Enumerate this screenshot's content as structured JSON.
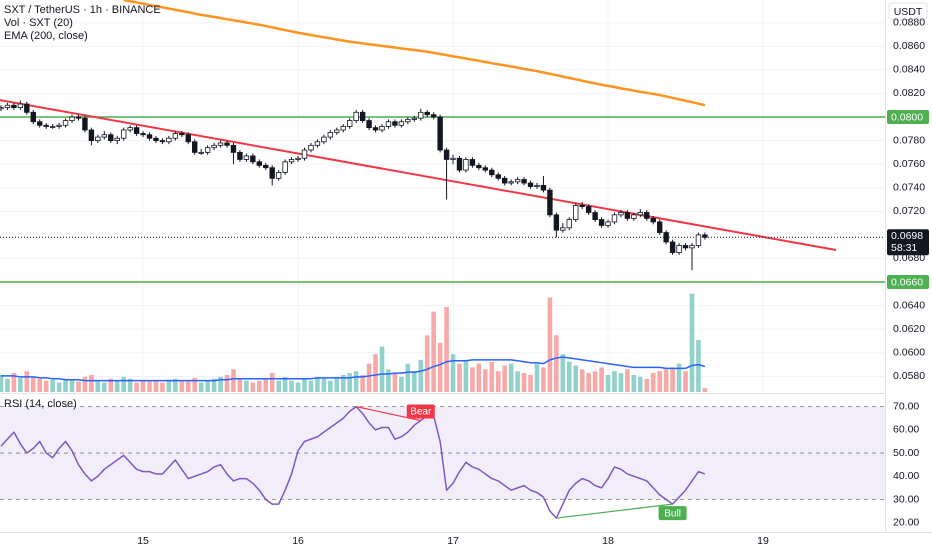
{
  "chart_data": {
    "type": "candlestick",
    "title": "SXT / TetherUS · 1h · BINANCE",
    "currency": "USDT",
    "x": [
      14.0833,
      14.125,
      14.1667,
      14.2083,
      14.25,
      14.2917,
      14.3333,
      14.375,
      14.4167,
      14.4583,
      14.5,
      14.5417,
      14.5833,
      14.625,
      14.6667,
      14.7083,
      14.75,
      14.7917,
      14.8333,
      14.875,
      14.9167,
      14.9583,
      15,
      15.0417,
      15.0833,
      15.125,
      15.1667,
      15.2083,
      15.25,
      15.2917,
      15.3333,
      15.375,
      15.4167,
      15.4583,
      15.5,
      15.5417,
      15.5833,
      15.625,
      15.6667,
      15.7083,
      15.75,
      15.7917,
      15.8333,
      15.875,
      15.9167,
      15.9583,
      16,
      16.0417,
      16.0833,
      16.125,
      16.1667,
      16.2083,
      16.25,
      16.2917,
      16.3333,
      16.375,
      16.4167,
      16.4583,
      16.5,
      16.5417,
      16.5833,
      16.625,
      16.6667,
      16.7083,
      16.75,
      16.7917,
      16.8333,
      16.875,
      16.9167,
      16.9583,
      17,
      17.0417,
      17.0833,
      17.125,
      17.1667,
      17.2083,
      17.25,
      17.2917,
      17.3333,
      17.375,
      17.4167,
      17.4583,
      17.5,
      17.5417,
      17.5833,
      17.625,
      17.6667,
      17.7083,
      17.75,
      17.7917,
      17.8333,
      17.875,
      17.9167,
      17.9583,
      18,
      18.0417,
      18.0833,
      18.125,
      18.1667,
      18.2083,
      18.25,
      18.2917,
      18.3333,
      18.375,
      18.4167,
      18.4583,
      18.5,
      18.5417,
      18.5833,
      18.625
    ],
    "open": [
      0.0807,
      0.0808,
      0.081,
      0.0808,
      0.0811,
      0.0804,
      0.0796,
      0.0793,
      0.0792,
      0.0792,
      0.0793,
      0.0797,
      0.08,
      0.0799,
      0.0789,
      0.078,
      0.0783,
      0.0785,
      0.078,
      0.0782,
      0.0789,
      0.0791,
      0.0786,
      0.0785,
      0.0782,
      0.078,
      0.0779,
      0.0782,
      0.0786,
      0.0785,
      0.0779,
      0.077,
      0.077,
      0.0774,
      0.0776,
      0.0778,
      0.0776,
      0.077,
      0.0764,
      0.0767,
      0.0762,
      0.0759,
      0.0757,
      0.0748,
      0.0753,
      0.0762,
      0.0764,
      0.0765,
      0.0772,
      0.0776,
      0.0779,
      0.0783,
      0.0787,
      0.0789,
      0.0792,
      0.0797,
      0.0804,
      0.0797,
      0.0791,
      0.0789,
      0.0792,
      0.0796,
      0.0793,
      0.0796,
      0.0798,
      0.0799,
      0.0804,
      0.0802,
      0.08,
      0.0772,
      0.0764,
      0.0765,
      0.0755,
      0.0764,
      0.0759,
      0.0757,
      0.0755,
      0.0751,
      0.0748,
      0.0744,
      0.0745,
      0.0747,
      0.0744,
      0.0741,
      0.0742,
      0.0738,
      0.0717,
      0.0704,
      0.0706,
      0.0713,
      0.0725,
      0.0724,
      0.0719,
      0.0713,
      0.0708,
      0.0711,
      0.0717,
      0.0719,
      0.0714,
      0.0717,
      0.0719,
      0.0714,
      0.0711,
      0.0702,
      0.0694,
      0.0685,
      0.0691,
      0.0689,
      0.0691,
      0.07
    ],
    "high": [
      0.081,
      0.0812,
      0.0812,
      0.0814,
      0.0813,
      0.0806,
      0.0798,
      0.0795,
      0.0794,
      0.0795,
      0.0799,
      0.0802,
      0.0802,
      0.0801,
      0.0791,
      0.0785,
      0.0788,
      0.0787,
      0.0784,
      0.0791,
      0.0793,
      0.0793,
      0.0788,
      0.0787,
      0.0784,
      0.0782,
      0.0784,
      0.0788,
      0.0788,
      0.0787,
      0.0781,
      0.0773,
      0.0776,
      0.0778,
      0.078,
      0.078,
      0.0778,
      0.0772,
      0.0769,
      0.0769,
      0.0764,
      0.0761,
      0.0759,
      0.0755,
      0.0764,
      0.0766,
      0.0767,
      0.0774,
      0.0778,
      0.0781,
      0.0785,
      0.0789,
      0.0791,
      0.0794,
      0.0799,
      0.0806,
      0.0806,
      0.0799,
      0.0793,
      0.0794,
      0.0798,
      0.0798,
      0.0798,
      0.08,
      0.0801,
      0.0807,
      0.0806,
      0.0804,
      0.0802,
      0.0774,
      0.0768,
      0.0767,
      0.0766,
      0.0766,
      0.0761,
      0.0759,
      0.0757,
      0.0753,
      0.075,
      0.0747,
      0.0749,
      0.0749,
      0.0746,
      0.0744,
      0.075,
      0.074,
      0.0719,
      0.071,
      0.0715,
      0.0727,
      0.0728,
      0.0726,
      0.0721,
      0.0715,
      0.0713,
      0.0719,
      0.0721,
      0.0721,
      0.0719,
      0.0722,
      0.0721,
      0.0716,
      0.0713,
      0.0704,
      0.0696,
      0.0693,
      0.0693,
      0.0693,
      0.0702,
      0.0702
    ],
    "low": [
      0.0805,
      0.0806,
      0.0806,
      0.0806,
      0.0802,
      0.0794,
      0.0791,
      0.079,
      0.079,
      0.079,
      0.0791,
      0.0795,
      0.0797,
      0.0787,
      0.0776,
      0.0778,
      0.0781,
      0.0778,
      0.0777,
      0.078,
      0.0787,
      0.0784,
      0.0783,
      0.078,
      0.0778,
      0.0777,
      0.0777,
      0.078,
      0.0783,
      0.0777,
      0.0768,
      0.0768,
      0.0768,
      0.0772,
      0.0774,
      0.0774,
      0.076,
      0.0762,
      0.0762,
      0.076,
      0.0757,
      0.0755,
      0.0742,
      0.0746,
      0.0751,
      0.076,
      0.0762,
      0.0763,
      0.077,
      0.0774,
      0.0777,
      0.0781,
      0.0785,
      0.0787,
      0.079,
      0.0795,
      0.0795,
      0.0789,
      0.0787,
      0.0787,
      0.079,
      0.0791,
      0.0791,
      0.0794,
      0.0796,
      0.0797,
      0.08,
      0.0798,
      0.077,
      0.073,
      0.076,
      0.0753,
      0.0753,
      0.0757,
      0.0755,
      0.0753,
      0.0749,
      0.0746,
      0.0742,
      0.0742,
      0.0743,
      0.0742,
      0.0739,
      0.0739,
      0.0736,
      0.0715,
      0.0698,
      0.0702,
      0.0704,
      0.0711,
      0.0722,
      0.0717,
      0.0711,
      0.0706,
      0.0706,
      0.0709,
      0.0715,
      0.0712,
      0.0712,
      0.0715,
      0.0712,
      0.0709,
      0.07,
      0.0692,
      0.0683,
      0.0683,
      0.0687,
      0.067,
      0.0689,
      0.0696
    ],
    "close": [
      0.0808,
      0.081,
      0.0808,
      0.0811,
      0.0804,
      0.0796,
      0.0793,
      0.0792,
      0.0792,
      0.0793,
      0.0797,
      0.08,
      0.0799,
      0.0789,
      0.078,
      0.0783,
      0.0785,
      0.078,
      0.0782,
      0.0789,
      0.0791,
      0.0786,
      0.0785,
      0.0782,
      0.078,
      0.0779,
      0.0782,
      0.0786,
      0.0785,
      0.0779,
      0.077,
      0.077,
      0.0774,
      0.0776,
      0.0778,
      0.0776,
      0.077,
      0.0764,
      0.0767,
      0.0762,
      0.0759,
      0.0757,
      0.0748,
      0.0753,
      0.0762,
      0.0764,
      0.0765,
      0.0772,
      0.0776,
      0.0779,
      0.0783,
      0.0787,
      0.0789,
      0.0792,
      0.0797,
      0.0804,
      0.0797,
      0.0791,
      0.0789,
      0.0792,
      0.0796,
      0.0793,
      0.0796,
      0.0798,
      0.0799,
      0.0804,
      0.0802,
      0.08,
      0.0772,
      0.0764,
      0.0765,
      0.0755,
      0.0764,
      0.0759,
      0.0757,
      0.0755,
      0.0751,
      0.0748,
      0.0744,
      0.0745,
      0.0747,
      0.0744,
      0.0741,
      0.0742,
      0.0738,
      0.0717,
      0.0704,
      0.0706,
      0.0713,
      0.0725,
      0.0724,
      0.0719,
      0.0713,
      0.0708,
      0.0711,
      0.0717,
      0.0719,
      0.0714,
      0.0717,
      0.0719,
      0.0714,
      0.0711,
      0.0702,
      0.0694,
      0.0685,
      0.0691,
      0.0689,
      0.0691,
      0.07,
      0.0698
    ],
    "candle_colors": {
      "up": "#ffffff",
      "down": "#131722",
      "border": "#131722"
    },
    "xlim": [
      14.077,
      19.787
    ],
    "xticks": [
      15,
      16,
      17,
      18,
      19
    ],
    "ylim": [
      0.05667,
      0.08993
    ],
    "yticks": [
      {
        "value": 0.058,
        "label": "0.0580"
      },
      {
        "value": 0.06,
        "label": "0.0600"
      },
      {
        "value": 0.062,
        "label": "0.0620"
      },
      {
        "value": 0.064,
        "label": "0.0640"
      },
      {
        "value": 0.068,
        "label": "0.0680"
      },
      {
        "value": 0.072,
        "label": "0.0720"
      },
      {
        "value": 0.074,
        "label": "0.0740"
      },
      {
        "value": 0.076,
        "label": "0.0760"
      },
      {
        "value": 0.078,
        "label": "0.0780"
      },
      {
        "value": 0.082,
        "label": "0.0820"
      },
      {
        "value": 0.084,
        "label": "0.0840"
      },
      {
        "value": 0.086,
        "label": "0.0860"
      },
      {
        "value": 0.088,
        "label": "0.0880"
      }
    ],
    "ema": {
      "name": "EMA (200, close)",
      "color": "#ff9320",
      "values": [
        null,
        null,
        null,
        null,
        null,
        null,
        null,
        null,
        null,
        null,
        null,
        null,
        null,
        null,
        null,
        null,
        null,
        null,
        null,
        0.08993,
        0.08983,
        0.08972,
        0.08962,
        0.08951,
        0.08941,
        0.08931,
        0.0892,
        0.08909,
        0.08899,
        0.08889,
        0.08878,
        0.08867,
        0.08858,
        0.08849,
        0.0884,
        0.0883,
        0.08821,
        0.08812,
        0.08802,
        0.08792,
        0.08783,
        0.08772,
        0.08761,
        0.08749,
        0.08738,
        0.08727,
        0.08715,
        0.08706,
        0.08696,
        0.08686,
        0.08677,
        0.08668,
        0.08658,
        0.08648,
        0.08639,
        0.08632,
        0.08625,
        0.08618,
        0.08611,
        0.08603,
        0.08597,
        0.0859,
        0.08582,
        0.08575,
        0.08569,
        0.08561,
        0.08554,
        0.08545,
        0.08535,
        0.08525,
        0.08515,
        0.08506,
        0.08496,
        0.08486,
        0.08477,
        0.08467,
        0.08457,
        0.08447,
        0.08438,
        0.08429,
        0.08418,
        0.08409,
        0.08399,
        0.08389,
        0.08378,
        0.08366,
        0.08355,
        0.08343,
        0.08331,
        0.0832,
        0.08308,
        0.08296,
        0.08285,
        0.08274,
        0.08264,
        0.08255,
        0.08243,
        0.08234,
        0.08224,
        0.08214,
        0.08205,
        0.08196,
        0.08187,
        0.08175,
        0.08162,
        0.0815,
        0.08138,
        0.08126,
        0.08113,
        0.08101
      ]
    },
    "volume": {
      "name": "Vol · SXT (20)",
      "up_color": "#92d2cc",
      "down_color": "#f7a9a7",
      "ylim": [
        0,
        110
      ],
      "values": [
        18,
        14,
        20,
        15,
        22,
        16,
        14,
        12,
        13,
        10,
        14,
        12,
        11,
        16,
        18,
        12,
        10,
        14,
        12,
        16,
        14,
        10,
        12,
        11,
        12,
        10,
        13,
        14,
        11,
        12,
        15,
        10,
        12,
        14,
        16,
        18,
        24,
        14,
        12,
        10,
        12,
        14,
        20,
        12,
        16,
        12,
        10,
        14,
        12,
        16,
        14,
        12,
        16,
        18,
        20,
        22,
        18,
        30,
        40,
        48,
        24,
        20,
        16,
        30,
        22,
        34,
        60,
        85,
        52,
        90,
        40,
        30,
        34,
        26,
        30,
        24,
        32,
        22,
        28,
        30,
        22,
        20,
        18,
        30,
        26,
        100,
        60,
        40,
        32,
        28,
        24,
        20,
        22,
        26,
        18,
        22,
        20,
        24,
        18,
        16,
        14,
        20,
        22,
        24,
        26,
        30,
        22,
        104,
        55,
        4
      ],
      "ma": {
        "color": "#2962ff",
        "values": [
          17,
          17,
          17,
          16,
          16,
          16,
          15,
          15,
          14,
          14,
          13,
          13,
          13,
          12,
          12,
          12,
          12,
          12,
          12,
          12,
          12,
          12,
          12,
          12,
          12,
          12,
          12,
          12,
          12,
          12,
          12,
          12,
          12,
          12,
          13,
          13,
          14,
          14,
          14,
          14,
          14,
          14,
          14,
          14,
          14,
          14,
          14,
          14,
          14,
          15,
          15,
          15,
          15,
          15,
          15,
          16,
          16,
          17,
          18,
          19,
          19,
          20,
          20,
          21,
          21,
          22,
          24,
          27,
          29,
          32,
          33,
          33,
          33,
          34,
          34,
          34,
          34,
          34,
          34,
          34,
          33,
          32,
          31,
          31,
          30,
          34,
          36,
          37,
          36,
          35,
          34,
          33,
          32,
          31,
          30,
          29,
          28,
          27,
          26,
          26,
          26,
          26,
          26,
          25,
          25,
          25,
          25,
          28,
          29,
          27
        ]
      }
    },
    "levels": [
      {
        "value": 0.08,
        "label": "0.0800",
        "color": "#4caf50"
      },
      {
        "value": 0.066,
        "label": "0.0660",
        "color": "#4caf50"
      }
    ],
    "trendline": {
      "x": [
        14.077,
        19.471
      ],
      "y": [
        0.08144,
        0.06872
      ],
      "color": "#f23645"
    },
    "last_price": {
      "value": 0.0698,
      "label": "0.0698",
      "color": "#131722"
    },
    "countdown": "58:31",
    "rsi": {
      "name": "RSI (14, close)",
      "color": "#7e57c2",
      "ylim": [
        16,
        75
      ],
      "yticks": [
        {
          "value": 20,
          "label": "20.00"
        },
        {
          "value": 30,
          "label": "30.00"
        },
        {
          "value": 40,
          "label": "40.00"
        },
        {
          "value": 50,
          "label": "50.00"
        },
        {
          "value": 60,
          "label": "60.00"
        },
        {
          "value": 70,
          "label": "70.00"
        }
      ],
      "band": [
        30,
        70
      ],
      "levels": [
        70,
        50,
        30
      ],
      "values": [
        53,
        56,
        59,
        54,
        50,
        52,
        55,
        50,
        48,
        52,
        55,
        51,
        45,
        41,
        38,
        40,
        43,
        45,
        47,
        49,
        46,
        43,
        42,
        42,
        41,
        41,
        44,
        47,
        43,
        39,
        40,
        41,
        42,
        44,
        45,
        41,
        38,
        39,
        39,
        37,
        34,
        30,
        28,
        28,
        34,
        41,
        51,
        55,
        56,
        57,
        59,
        61,
        63,
        65,
        68,
        70,
        67,
        63,
        60,
        61,
        61,
        56,
        57,
        59,
        62,
        64,
        66,
        66,
        55,
        34,
        37,
        42,
        46,
        44,
        43,
        41,
        39,
        38,
        36,
        34,
        35,
        36,
        34,
        33,
        31,
        25,
        22,
        28,
        34,
        37,
        39,
        38,
        36,
        35,
        39,
        44,
        43,
        41,
        40,
        39,
        38,
        35,
        32,
        30,
        28,
        31,
        34,
        38,
        42,
        41
      ],
      "divergences": [
        {
          "label": "Bear",
          "color": "#f23645",
          "x": [
            16.375,
            16.7917
          ],
          "y": [
            70,
            64
          ]
        },
        {
          "label": "Bull",
          "color": "#4caf50",
          "x": [
            17.6667,
            18.4167
          ],
          "y": [
            22,
            28
          ]
        }
      ]
    }
  }
}
